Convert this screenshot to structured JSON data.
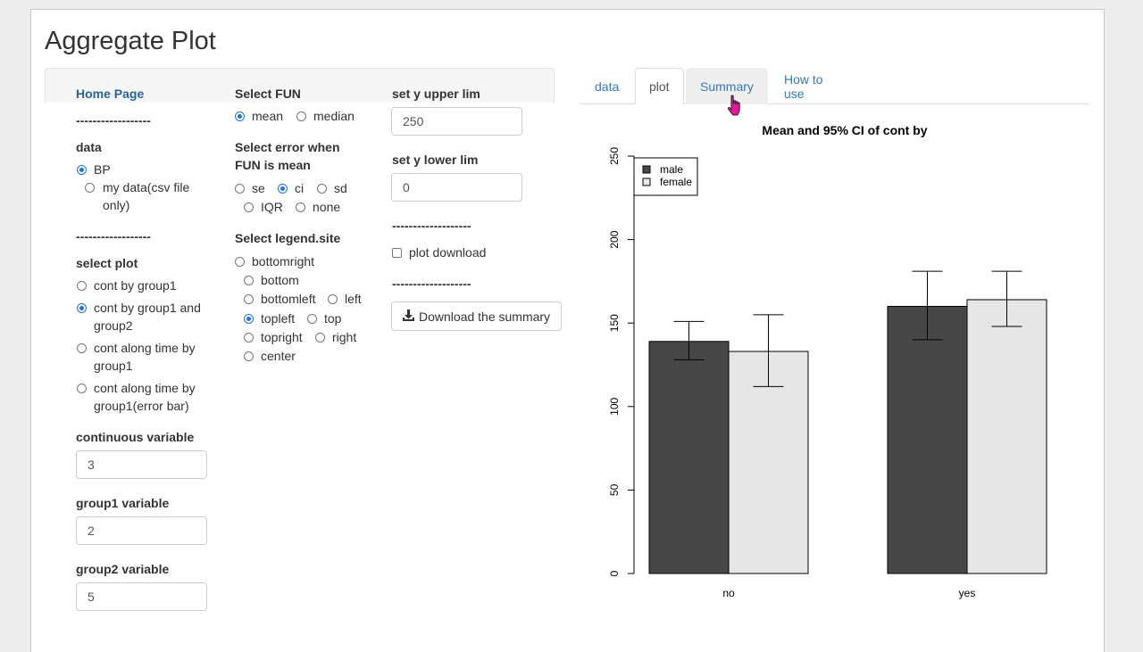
{
  "app": {
    "title": "Aggregate Plot"
  },
  "sidebar": {
    "home_link": "Home Page",
    "divider": "------------------",
    "divider2": "-------------------",
    "data": {
      "label": "data",
      "options": [
        "BP",
        "my data(csv file",
        "only)"
      ]
    },
    "plot": {
      "label": "select plot",
      "options": [
        "cont by group1",
        "cont by group1 and",
        "group2",
        "cont along time by",
        "group1",
        "cont along time by",
        "group1(error bar)"
      ]
    },
    "continuous": {
      "label": "continuous variable",
      "value": "3"
    },
    "group1": {
      "label": "group1 variable",
      "value": "2"
    },
    "group2": {
      "label": "group2 variable",
      "value": "5"
    },
    "fun": {
      "label": "Select FUN",
      "options": [
        "mean",
        "median"
      ]
    },
    "error": {
      "label_line1": "Select error when",
      "label_line2": "FUN is mean",
      "options": [
        "se",
        "ci",
        "sd",
        "IQR",
        "none"
      ]
    },
    "legend": {
      "label": "Select legend.site",
      "options": [
        "bottomright",
        "bottom",
        "bottomleft",
        "left",
        "topleft",
        "top",
        "topright",
        "right",
        "center"
      ]
    },
    "ylim_upper": {
      "label": "set y upper lim",
      "value": "250"
    },
    "ylim_lower": {
      "label": "set y lower lim",
      "value": "0"
    },
    "plot_download": "plot download",
    "download_summary": "Download the summary"
  },
  "tabs": [
    "data",
    "plot",
    "Summary",
    "How to use"
  ],
  "icons": {
    "download": "download-icon",
    "cursor": "hand-pointer-icon"
  },
  "colors": {
    "male": "#474747",
    "female": "#e6e6e6",
    "link": "#337ab7",
    "radio": "#1a73e8"
  },
  "chart_data": {
    "type": "bar",
    "title": "Mean and 95% CI of cont by",
    "categories": [
      "no",
      "yes"
    ],
    "series": [
      {
        "name": "male",
        "values": [
          139,
          160
        ],
        "ci_low": [
          128,
          140
        ],
        "ci_high": [
          151,
          181
        ]
      },
      {
        "name": "female",
        "values": [
          133,
          164
        ],
        "ci_low": [
          112,
          148
        ],
        "ci_high": [
          155,
          181
        ]
      }
    ],
    "ylim": [
      0,
      250
    ],
    "yticks": [
      0,
      50,
      100,
      150,
      200,
      250
    ],
    "legend_position": "top-left"
  }
}
